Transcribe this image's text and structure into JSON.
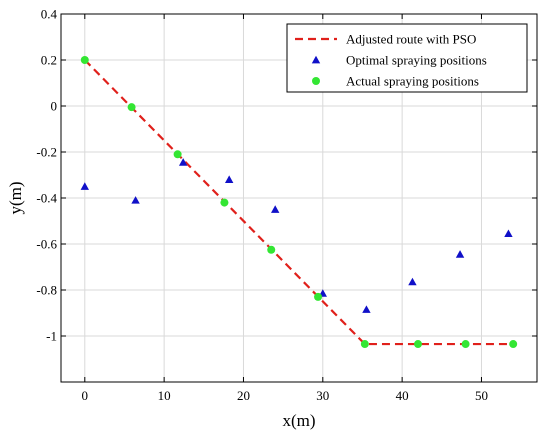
{
  "chart_data": {
    "type": "scatter",
    "title": "",
    "xlabel": "x(m)",
    "ylabel": "y(m)",
    "xlim": [
      -3,
      57
    ],
    "ylim": [
      -1.2,
      0.4
    ],
    "xticks": [
      0,
      10,
      20,
      30,
      40,
      50
    ],
    "yticks": [
      -1,
      -0.8,
      -0.6,
      -0.4,
      -0.2,
      0,
      0.2,
      0.4
    ],
    "xtick_labels": [
      "0",
      "10",
      "20",
      "30",
      "40",
      "50"
    ],
    "ytick_labels": [
      "-1",
      "-0.8",
      "-0.6",
      "-0.4",
      "-0.2",
      "0",
      "0.2",
      "0.4"
    ],
    "grid": true,
    "legend_position": "top-right",
    "series": [
      {
        "name": "Adjusted route with PSO",
        "kind": "line",
        "style": "dashed",
        "color": "#e0201b",
        "x": [
          0,
          35.3,
          54
        ],
        "y": [
          0.2,
          -1.035,
          -1.035
        ]
      },
      {
        "name": "Optimal spraying positions",
        "kind": "scatter",
        "marker": "triangle",
        "color": "#1010c8",
        "x": [
          0,
          6.4,
          12.4,
          18.2,
          24,
          30,
          35.5,
          41.3,
          47.3,
          53.4
        ],
        "y": [
          -0.35,
          -0.41,
          -0.245,
          -0.32,
          -0.45,
          -0.815,
          -0.885,
          -0.765,
          -0.645,
          -0.555
        ]
      },
      {
        "name": "Actual spraying positions",
        "kind": "scatter",
        "marker": "circle",
        "color": "#33e633",
        "x": [
          0,
          5.9,
          11.7,
          17.6,
          23.5,
          29.4,
          35.3,
          42,
          48,
          54
        ],
        "y": [
          0.2,
          -0.005,
          -0.21,
          -0.42,
          -0.625,
          -0.83,
          -1.035,
          -1.035,
          -1.035,
          -1.035
        ]
      }
    ]
  }
}
